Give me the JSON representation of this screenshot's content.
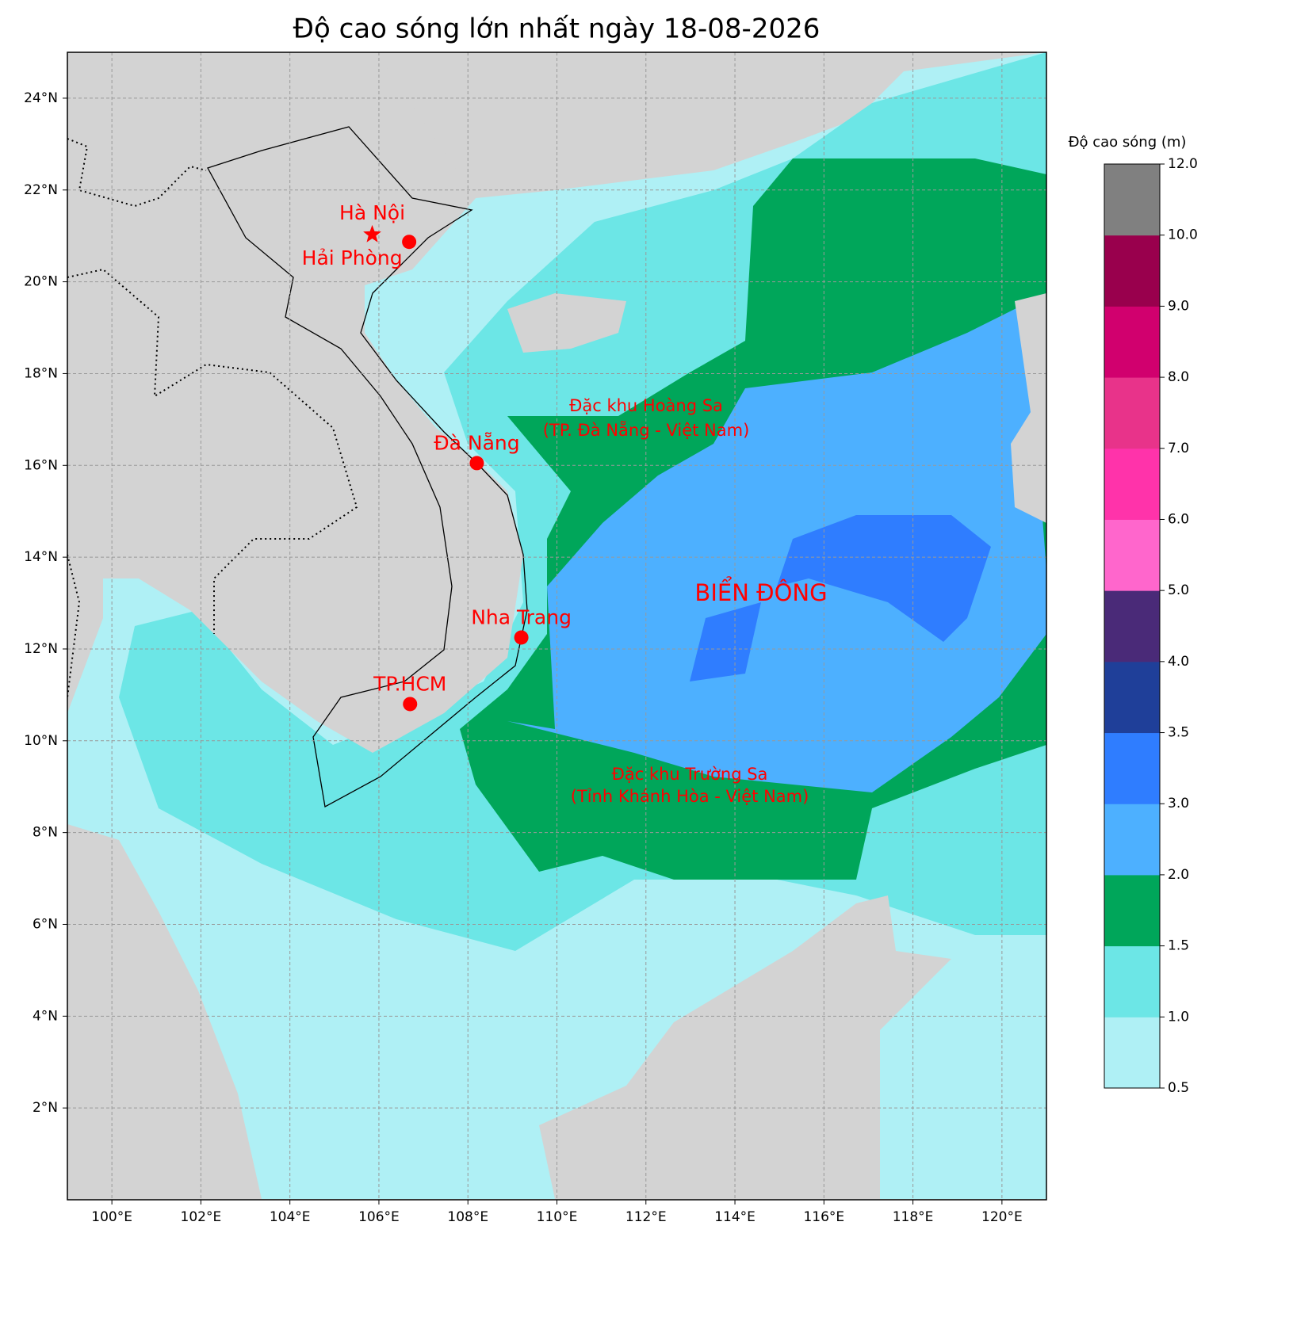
{
  "title": "Độ cao sóng lớn nhất ngày 18-08-2026",
  "map": {
    "xlim": [
      99,
      121
    ],
    "ylim": [
      0,
      25
    ],
    "grid": true,
    "xticks": [
      {
        "value": 100,
        "label": "100°E"
      },
      {
        "value": 102,
        "label": "102°E"
      },
      {
        "value": 104,
        "label": "104°E"
      },
      {
        "value": 106,
        "label": "106°E"
      },
      {
        "value": 108,
        "label": "108°E"
      },
      {
        "value": 110,
        "label": "110°E"
      },
      {
        "value": 112,
        "label": "112°E"
      },
      {
        "value": 114,
        "label": "114°E"
      },
      {
        "value": 116,
        "label": "116°E"
      },
      {
        "value": 118,
        "label": "118°E"
      },
      {
        "value": 120,
        "label": "120°E"
      }
    ],
    "yticks": [
      {
        "value": 2,
        "label": "2°N"
      },
      {
        "value": 4,
        "label": "4°N"
      },
      {
        "value": 6,
        "label": "6°N"
      },
      {
        "value": 8,
        "label": "8°N"
      },
      {
        "value": 10,
        "label": "10°N"
      },
      {
        "value": 12,
        "label": "12°N"
      },
      {
        "value": 14,
        "label": "14°N"
      },
      {
        "value": 16,
        "label": "16°N"
      },
      {
        "value": 18,
        "label": "18°N"
      },
      {
        "value": 20,
        "label": "20°N"
      },
      {
        "value": 22,
        "label": "22°N"
      },
      {
        "value": 24,
        "label": "24°N"
      }
    ]
  },
  "cities": [
    {
      "name": "Hà Nội",
      "lon": 105.85,
      "lat": 21.03,
      "marker": "star",
      "color": "#ff0000"
    },
    {
      "name": "Hải Phòng",
      "lon": 106.68,
      "lat": 20.87,
      "marker": "dot",
      "color": "#ff0000"
    },
    {
      "name": "Đà Nẵng",
      "lon": 108.2,
      "lat": 16.05,
      "marker": "dot",
      "color": "#ff0000"
    },
    {
      "name": "Nha Trang",
      "lon": 109.2,
      "lat": 12.25,
      "marker": "dot",
      "color": "#ff0000"
    },
    {
      "name": "TP.HCM",
      "lon": 106.7,
      "lat": 10.8,
      "marker": "dot",
      "color": "#ff0000"
    }
  ],
  "labels": {
    "sea": "BIỂN ĐÔNG",
    "hoang_sa": [
      "Đặc khu Hoàng Sa",
      "(TP. Đà Nẵng - Việt Nam)"
    ],
    "truong_sa": [
      "Đặc khu Trường Sa",
      "(Tỉnh Khánh Hòa - Việt Nam)"
    ]
  },
  "colorbar": {
    "label": "Độ cao sóng (m)",
    "ticks": [
      {
        "value": 0.5,
        "label": "0.5"
      },
      {
        "value": 1,
        "label": "1.0"
      },
      {
        "value": 1.5,
        "label": "1.5"
      },
      {
        "value": 2,
        "label": "2.0"
      },
      {
        "value": 3,
        "label": "3.0"
      },
      {
        "value": 3.5,
        "label": "3.5"
      },
      {
        "value": 4,
        "label": "4.0"
      },
      {
        "value": 5,
        "label": "5.0"
      },
      {
        "value": 6,
        "label": "6.0"
      },
      {
        "value": 7,
        "label": "7.0"
      },
      {
        "value": 8,
        "label": "8.0"
      },
      {
        "value": 9,
        "label": "9.0"
      },
      {
        "value": 10,
        "label": "10.0"
      },
      {
        "value": 12,
        "label": "12.0"
      }
    ],
    "colors": [
      "#aff0f5",
      "#6ce6e6",
      "#00a65a",
      "#4db0ff",
      "#2f7dff",
      "#1f3f99",
      "#4a2a78",
      "#ff66cc",
      "#ff33aa",
      "#e8338a",
      "#d1006e",
      "#99004d",
      "#808080"
    ]
  }
}
